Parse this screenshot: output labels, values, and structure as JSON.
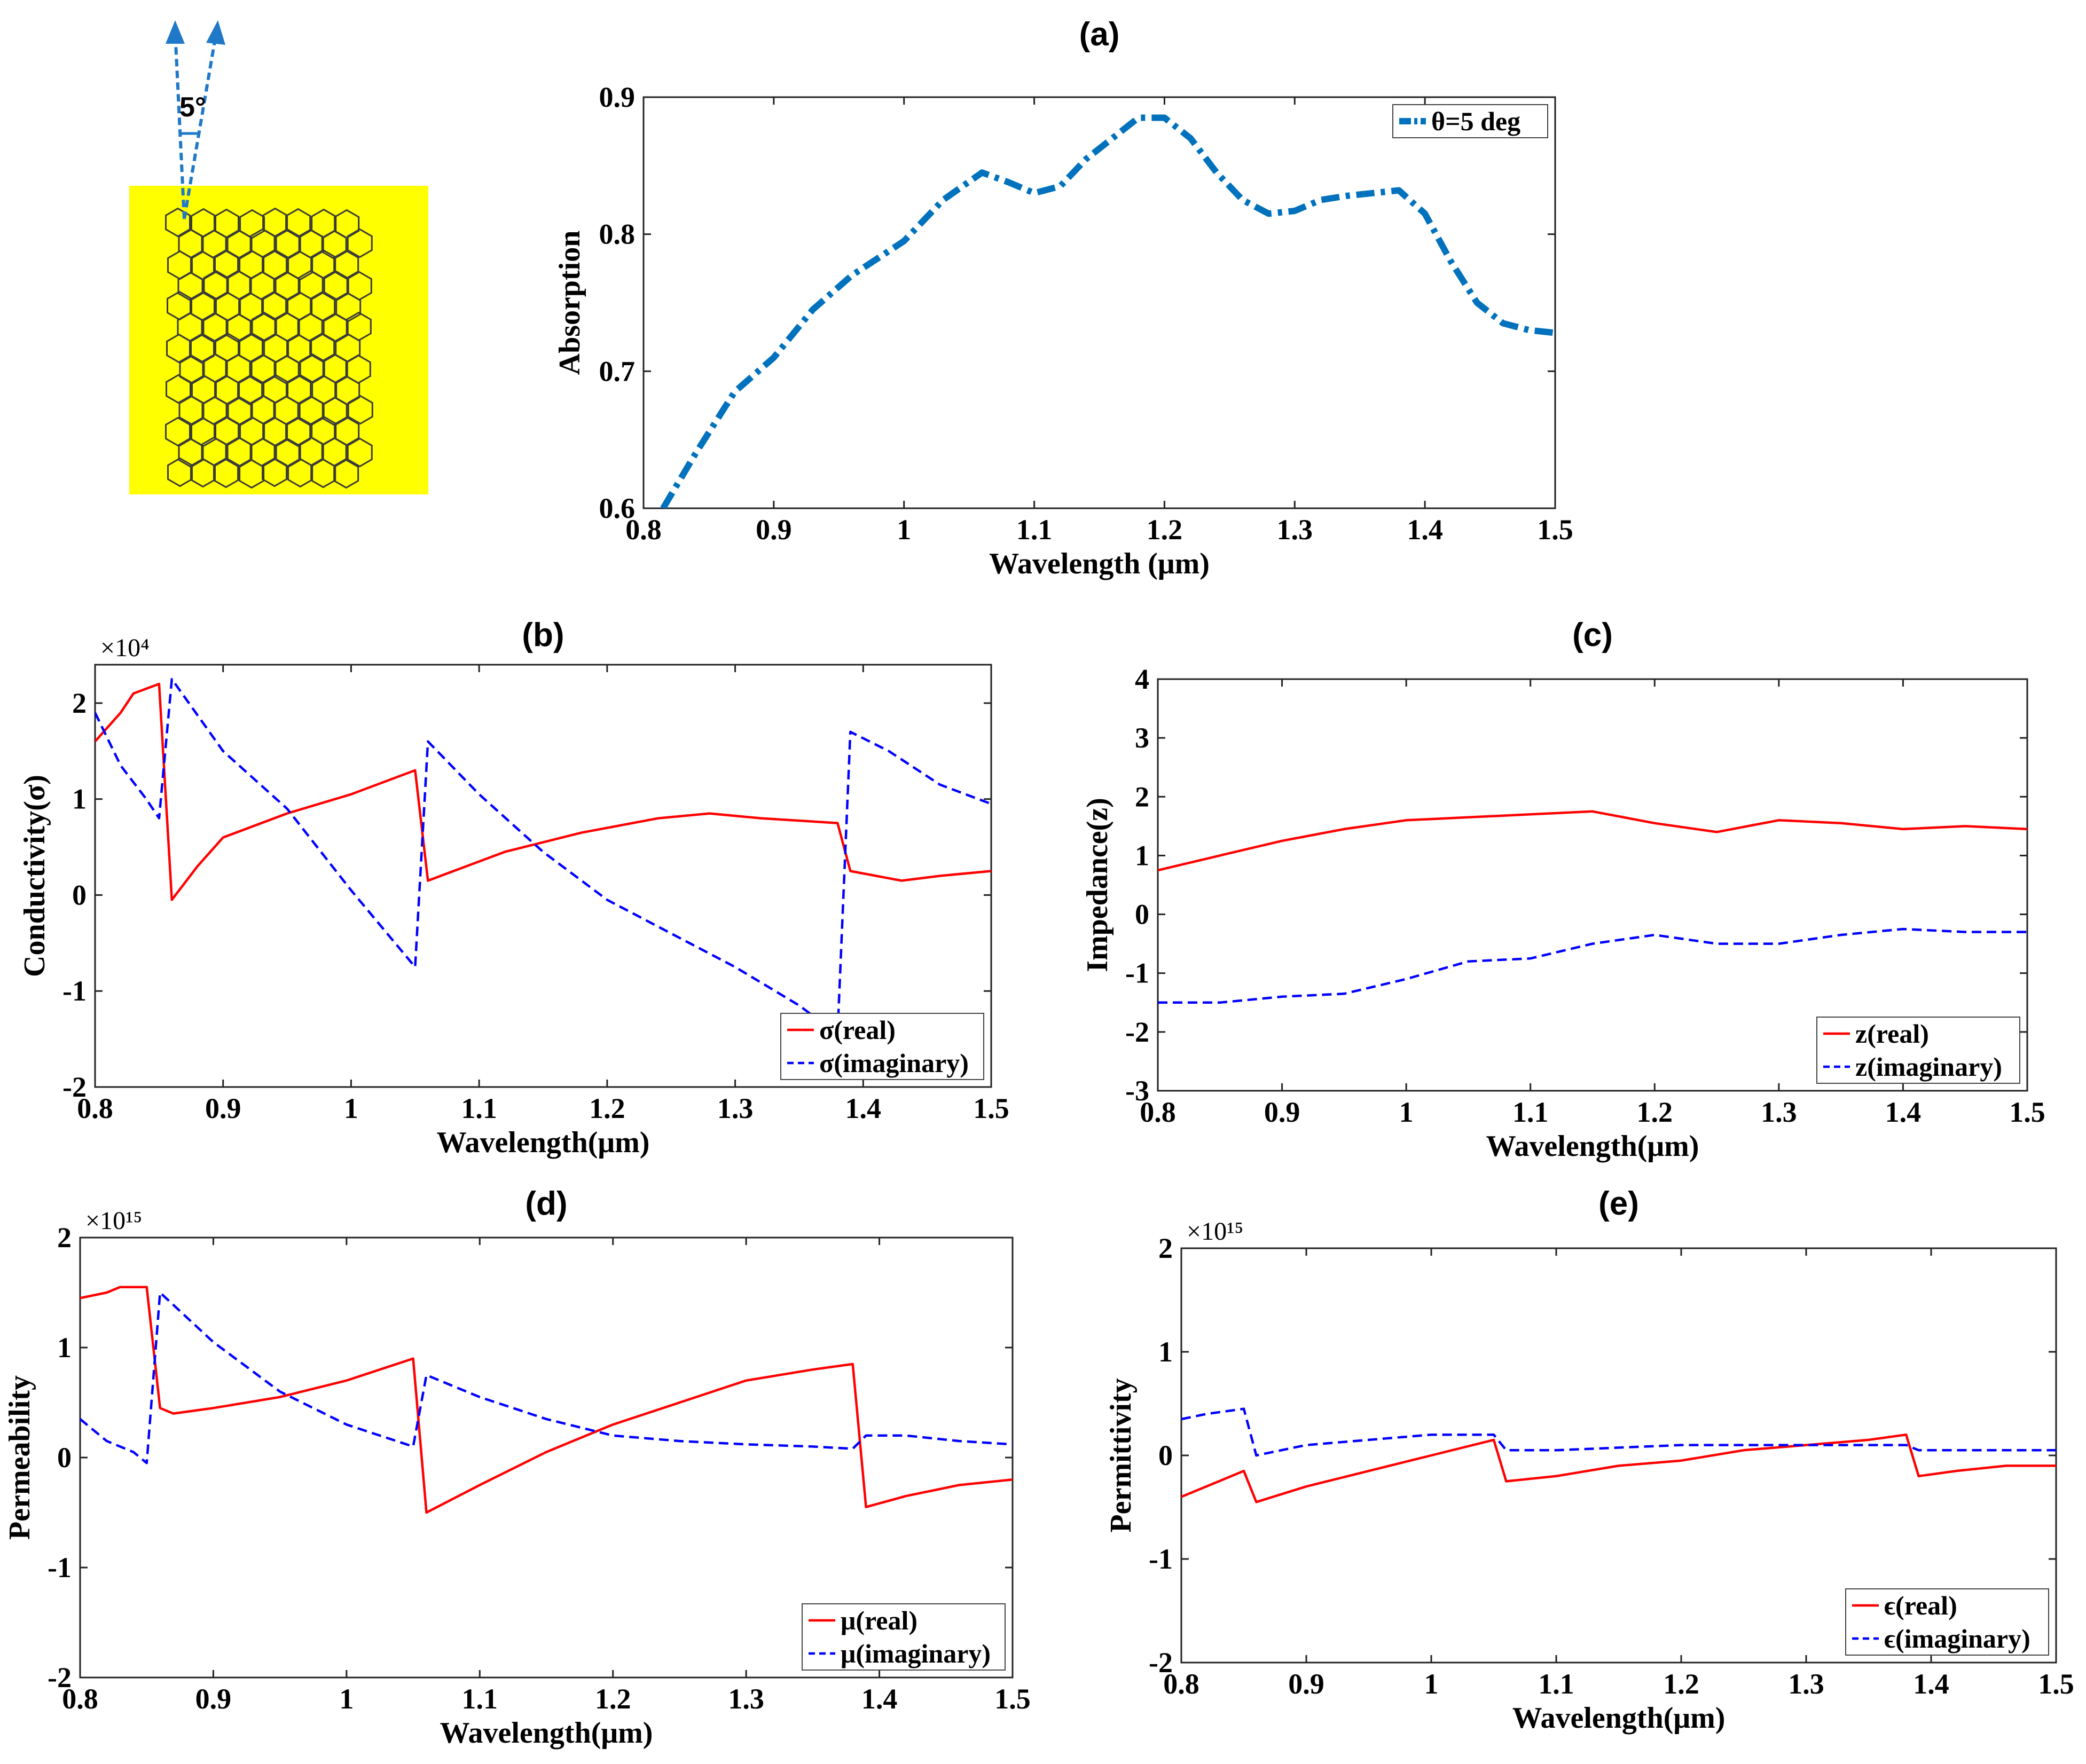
{
  "inset": {
    "angle_label": "5°",
    "bg_color": "#ffff00"
  },
  "colors": {
    "real": "#ff0000",
    "imag": "#0000ff",
    "absorption": "#0072bd"
  },
  "chart_data": [
    {
      "id": "a",
      "type": "line",
      "title": "(a)",
      "xlabel": "Wavelength (μm)",
      "ylabel": "Absorption",
      "xlim": [
        0.8,
        1.5
      ],
      "ylim": [
        0.6,
        0.9
      ],
      "xticks": [
        "0.8",
        "0.9",
        "1",
        "1.1",
        "1.2",
        "1.3",
        "1.4",
        "1.5"
      ],
      "yticks": [
        "0.6",
        "0.7",
        "0.8",
        "0.9"
      ],
      "legend_position": "top-right",
      "series": [
        {
          "name": "θ=5 deg",
          "style": "dashdot",
          "x": [
            0.815,
            0.84,
            0.87,
            0.9,
            0.93,
            0.96,
            1.0,
            1.03,
            1.06,
            1.08,
            1.1,
            1.12,
            1.14,
            1.16,
            1.18,
            1.2,
            1.22,
            1.24,
            1.26,
            1.28,
            1.3,
            1.32,
            1.34,
            1.36,
            1.38,
            1.4,
            1.42,
            1.44,
            1.46,
            1.48,
            1.5
          ],
          "y": [
            0.6,
            0.64,
            0.685,
            0.71,
            0.745,
            0.77,
            0.795,
            0.825,
            0.845,
            0.838,
            0.83,
            0.835,
            0.855,
            0.87,
            0.885,
            0.885,
            0.87,
            0.845,
            0.825,
            0.815,
            0.817,
            0.825,
            0.828,
            0.83,
            0.832,
            0.815,
            0.78,
            0.75,
            0.735,
            0.73,
            0.728
          ]
        }
      ]
    },
    {
      "id": "b",
      "type": "line",
      "title": "(b)",
      "xlabel": "Wavelength(μm)",
      "ylabel": "Conductivity(σ)",
      "exponent": "×10⁴",
      "xlim": [
        0.8,
        1.5
      ],
      "ylim": [
        -2,
        2.4
      ],
      "xticks": [
        "0.8",
        "0.9",
        "1",
        "1.1",
        "1.2",
        "1.3",
        "1.4",
        "1.5"
      ],
      "yticks": [
        "-2",
        "-1",
        "0",
        "1",
        "2"
      ],
      "legend_position": "bottom-right",
      "series": [
        {
          "name": "σ(real)",
          "style": "solid",
          "x": [
            0.8,
            0.82,
            0.83,
            0.84,
            0.85,
            0.86,
            0.88,
            0.9,
            0.95,
            1.0,
            1.05,
            1.06,
            1.08,
            1.12,
            1.18,
            1.24,
            1.28,
            1.32,
            1.38,
            1.39,
            1.43,
            1.46,
            1.5
          ],
          "y": [
            1.6,
            1.9,
            2.1,
            2.15,
            2.2,
            -0.05,
            0.3,
            0.6,
            0.85,
            1.05,
            1.3,
            0.15,
            0.25,
            0.45,
            0.65,
            0.8,
            0.85,
            0.8,
            0.75,
            0.25,
            0.15,
            0.2,
            0.25
          ]
        },
        {
          "name": "σ(imaginary)",
          "style": "dashed",
          "x": [
            0.8,
            0.82,
            0.84,
            0.85,
            0.86,
            0.9,
            0.95,
            1.0,
            1.05,
            1.06,
            1.1,
            1.15,
            1.2,
            1.25,
            1.3,
            1.35,
            1.38,
            1.39,
            1.42,
            1.46,
            1.5
          ],
          "y": [
            1.9,
            1.35,
            1.0,
            0.8,
            2.25,
            1.5,
            0.9,
            0.05,
            -0.75,
            1.6,
            1.05,
            0.45,
            -0.05,
            -0.4,
            -0.75,
            -1.15,
            -1.45,
            1.7,
            1.5,
            1.15,
            0.95
          ]
        }
      ]
    },
    {
      "id": "c",
      "type": "line",
      "title": "(c)",
      "xlabel": "Wavelength(μm)",
      "ylabel": "Impedance(z)",
      "xlim": [
        0.8,
        1.5
      ],
      "ylim": [
        -3,
        4
      ],
      "xticks": [
        "0.8",
        "0.9",
        "1",
        "1.1",
        "1.2",
        "1.3",
        "1.4",
        "1.5"
      ],
      "yticks": [
        "-3",
        "-2",
        "-1",
        "0",
        "1",
        "2",
        "3",
        "4"
      ],
      "legend_position": "bottom-right",
      "series": [
        {
          "name": "z(real)",
          "style": "solid",
          "x": [
            0.8,
            0.85,
            0.9,
            0.95,
            1.0,
            1.05,
            1.1,
            1.15,
            1.2,
            1.25,
            1.3,
            1.35,
            1.4,
            1.45,
            1.5
          ],
          "y": [
            0.75,
            1.0,
            1.25,
            1.45,
            1.6,
            1.65,
            1.7,
            1.75,
            1.55,
            1.4,
            1.6,
            1.55,
            1.45,
            1.5,
            1.45
          ]
        },
        {
          "name": "z(imaginary)",
          "style": "dashed",
          "x": [
            0.8,
            0.85,
            0.9,
            0.95,
            1.0,
            1.05,
            1.1,
            1.15,
            1.2,
            1.25,
            1.3,
            1.35,
            1.4,
            1.45,
            1.5
          ],
          "y": [
            -1.5,
            -1.5,
            -1.4,
            -1.35,
            -1.1,
            -0.8,
            -0.75,
            -0.5,
            -0.35,
            -0.5,
            -0.5,
            -0.35,
            -0.25,
            -0.3,
            -0.3
          ]
        }
      ]
    },
    {
      "id": "d",
      "type": "line",
      "title": "(d)",
      "xlabel": "Wavelength(μm)",
      "ylabel": "Permeability",
      "exponent": "×10¹⁵",
      "xlim": [
        0.8,
        1.5
      ],
      "ylim": [
        -2,
        2
      ],
      "xticks": [
        "0.8",
        "0.9",
        "1",
        "1.1",
        "1.2",
        "1.3",
        "1.4",
        "1.5"
      ],
      "yticks": [
        "-2",
        "-1",
        "0",
        "1",
        "2"
      ],
      "legend_position": "bottom-right",
      "series": [
        {
          "name": "μ(real)",
          "style": "solid",
          "x": [
            0.8,
            0.82,
            0.83,
            0.85,
            0.86,
            0.87,
            0.9,
            0.95,
            1.0,
            1.05,
            1.06,
            1.1,
            1.15,
            1.2,
            1.25,
            1.3,
            1.35,
            1.38,
            1.39,
            1.42,
            1.46,
            1.5
          ],
          "y": [
            1.45,
            1.5,
            1.55,
            1.55,
            0.45,
            0.4,
            0.45,
            0.55,
            0.7,
            0.9,
            -0.5,
            -0.25,
            0.05,
            0.3,
            0.5,
            0.7,
            0.8,
            0.85,
            -0.45,
            -0.35,
            -0.25,
            -0.2
          ]
        },
        {
          "name": "μ(imaginary)",
          "style": "dashed",
          "x": [
            0.8,
            0.82,
            0.84,
            0.85,
            0.86,
            0.9,
            0.95,
            1.0,
            1.05,
            1.06,
            1.1,
            1.15,
            1.2,
            1.25,
            1.3,
            1.35,
            1.38,
            1.39,
            1.42,
            1.46,
            1.5
          ],
          "y": [
            0.35,
            0.15,
            0.05,
            -0.05,
            1.5,
            1.05,
            0.6,
            0.3,
            0.1,
            0.75,
            0.55,
            0.35,
            0.2,
            0.15,
            0.12,
            0.1,
            0.08,
            0.2,
            0.2,
            0.15,
            0.12
          ]
        }
      ]
    },
    {
      "id": "e",
      "type": "line",
      "title": "(e)",
      "xlabel": "Wavelength(μm)",
      "ylabel": "Permittivity",
      "exponent": "×10¹⁵",
      "xlim": [
        0.8,
        1.5
      ],
      "ylim": [
        -2,
        2
      ],
      "xticks": [
        "0.8",
        "0.9",
        "1",
        "1.1",
        "1.2",
        "1.3",
        "1.4",
        "1.5"
      ],
      "yticks": [
        "-2",
        "-1",
        "0",
        "1",
        "2"
      ],
      "legend_position": "bottom-right",
      "series": [
        {
          "name": "ϵ(real)",
          "style": "solid",
          "x": [
            0.8,
            0.82,
            0.84,
            0.85,
            0.86,
            0.9,
            0.95,
            1.0,
            1.05,
            1.06,
            1.1,
            1.15,
            1.2,
            1.25,
            1.3,
            1.35,
            1.38,
            1.39,
            1.42,
            1.46,
            1.5
          ],
          "y": [
            -0.4,
            -0.3,
            -0.2,
            -0.15,
            -0.45,
            -0.3,
            -0.15,
            0.0,
            0.15,
            -0.25,
            -0.2,
            -0.1,
            -0.05,
            0.05,
            0.1,
            0.15,
            0.2,
            -0.2,
            -0.15,
            -0.1,
            -0.1
          ]
        },
        {
          "name": "ϵ(imaginary)",
          "style": "dashed",
          "x": [
            0.8,
            0.82,
            0.85,
            0.86,
            0.9,
            0.95,
            1.0,
            1.05,
            1.06,
            1.1,
            1.2,
            1.3,
            1.38,
            1.39,
            1.42,
            1.5
          ],
          "y": [
            0.35,
            0.4,
            0.45,
            0.0,
            0.1,
            0.15,
            0.2,
            0.2,
            0.05,
            0.05,
            0.1,
            0.1,
            0.1,
            0.05,
            0.05,
            0.05
          ]
        }
      ]
    }
  ]
}
